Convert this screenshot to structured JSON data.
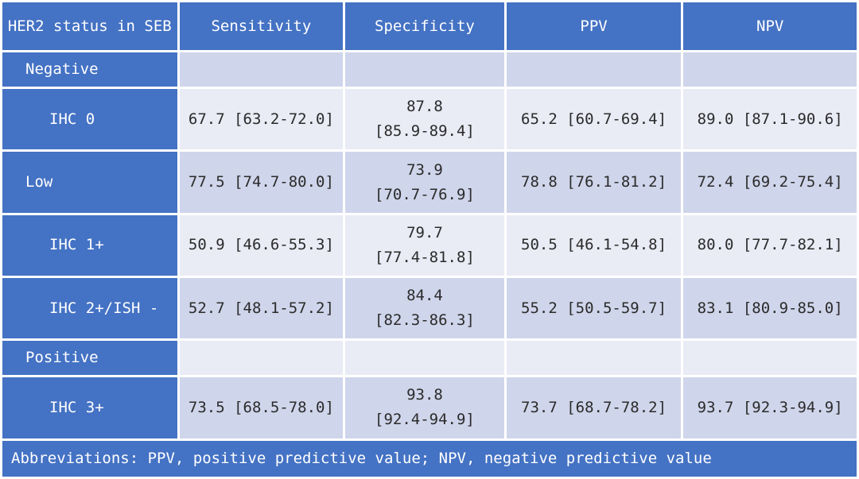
{
  "table": {
    "headers": [
      "HER2 status in SEB",
      "Sensitivity",
      "Specificity",
      "PPV",
      "NPV"
    ],
    "rows": [
      {
        "label": "Negative",
        "indent": 1,
        "type": "band",
        "cells": [
          "",
          "",
          "",
          ""
        ]
      },
      {
        "label": "IHC 0",
        "indent": 2,
        "type": "row",
        "shade": "light",
        "cells": [
          "67.7 [63.2-72.0]",
          "87.8 [85.9-89.4]",
          "65.2 [60.7-69.4]",
          "89.0 [87.1-90.6]"
        ],
        "spec_value": "87.8",
        "spec_ci": "[85.9-89.4]"
      },
      {
        "label": "Low",
        "indent": 1,
        "type": "row",
        "shade": "shade",
        "cells": [
          "77.5 [74.7-80.0]",
          "73.9 [70.7-76.9]",
          "78.8 [76.1-81.2]",
          "72.4 [69.2-75.4]"
        ],
        "spec_value": "73.9",
        "spec_ci": "[70.7-76.9]"
      },
      {
        "label": "IHC 1+",
        "indent": 2,
        "type": "row",
        "shade": "light",
        "cells": [
          "50.9 [46.6-55.3]",
          "79.7 [77.4-81.8]",
          "50.5 [46.1-54.8]",
          "80.0 [77.7-82.1]"
        ],
        "spec_value": "79.7",
        "spec_ci": "[77.4-81.8]"
      },
      {
        "label": "IHC 2+/ISH -",
        "indent": 2,
        "type": "row",
        "shade": "shade",
        "cells": [
          "52.7 [48.1-57.2]",
          "84.4 [82.3-86.3]",
          "55.2 [50.5-59.7]",
          "83.1 [80.9-85.0]"
        ],
        "spec_value": "84.4",
        "spec_ci": "[82.3-86.3]"
      },
      {
        "label": "Positive",
        "indent": 1,
        "type": "band",
        "cells": [
          "",
          "",
          "",
          ""
        ]
      },
      {
        "label": "IHC 3+",
        "indent": 2,
        "type": "row",
        "shade": "shade",
        "cells": [
          "73.5 [68.5-78.0]",
          "93.8 [92.4-94.9]",
          "73.7 [68.7-78.2]",
          "93.7 [92.3-94.9]"
        ],
        "spec_value": "93.8",
        "spec_ci": "[92.4-94.9]"
      }
    ],
    "footnote": "Abbreviations: PPV, positive predictive value; NPV, negative predictive value"
  },
  "colors": {
    "header": "#4472c4",
    "row_dark": "#cfd5ea",
    "row_light": "#e9ebf5",
    "text": "#2b2b2b"
  }
}
